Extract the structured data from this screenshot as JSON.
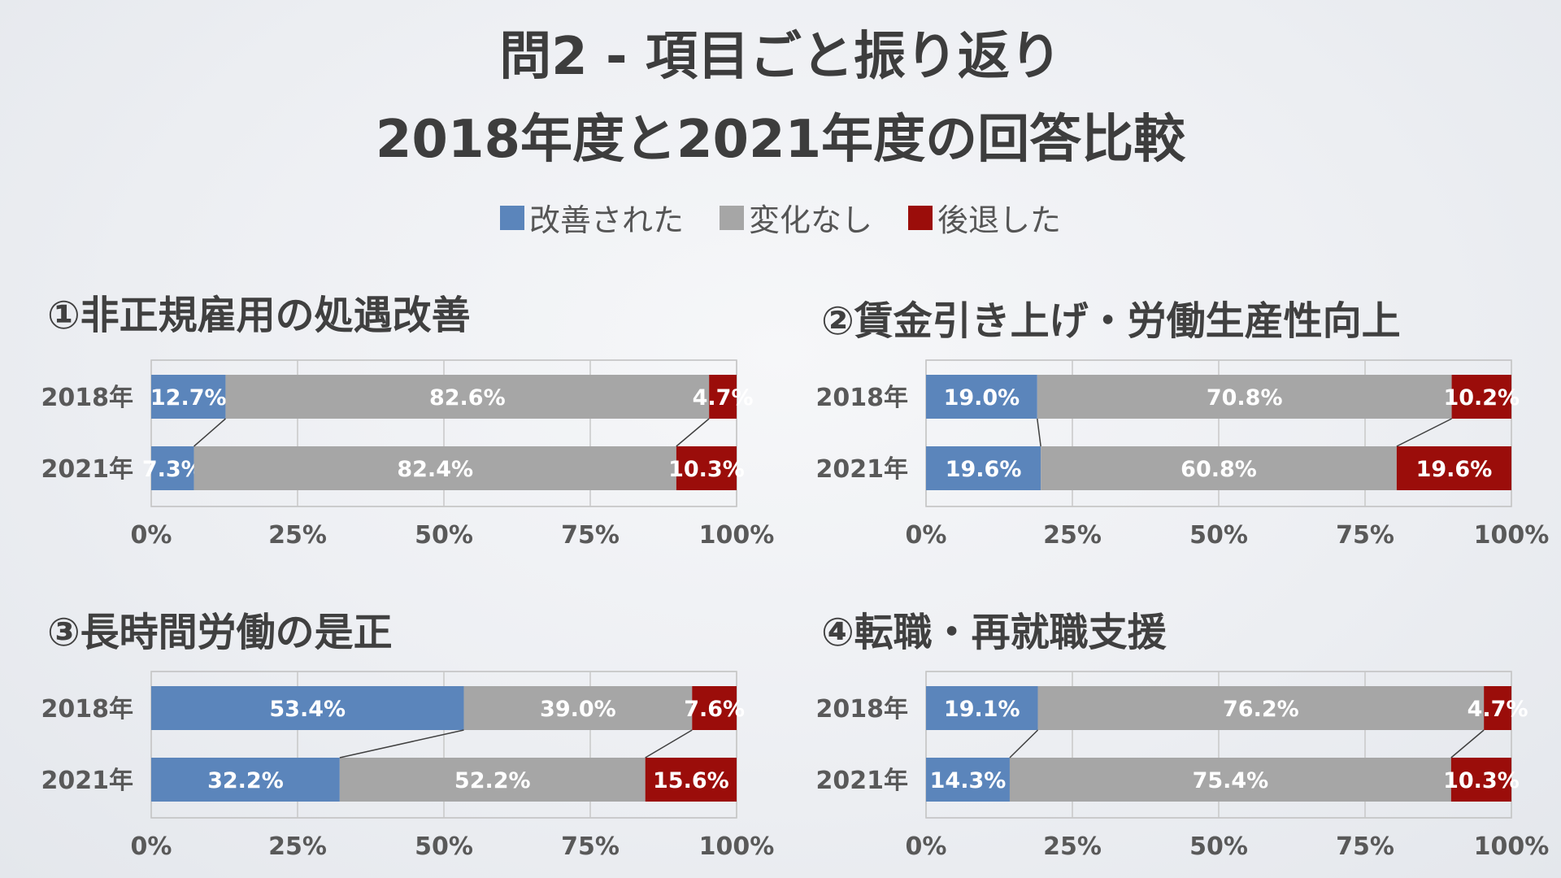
{
  "title_line1": "問2 - 項目ごと振り返り",
  "title_line2": "2018年度と2021年度の回答比較",
  "legend": [
    {
      "label": "改善された",
      "color": "#5b85bb"
    },
    {
      "label": "変化なし",
      "color": "#a6a6a6"
    },
    {
      "label": "後退した",
      "color": "#9b0d0a"
    }
  ],
  "chart_data": [
    {
      "type": "bar",
      "stacked": true,
      "orientation": "horizontal",
      "title": "①非正規雇用の処遇改善",
      "categories": [
        "2018年",
        "2021年"
      ],
      "series": [
        {
          "name": "改善された",
          "values": [
            12.7,
            7.3
          ]
        },
        {
          "name": "変化なし",
          "values": [
            82.6,
            82.4
          ]
        },
        {
          "name": "後退した",
          "values": [
            4.7,
            10.3
          ]
        }
      ],
      "xlim": [
        0,
        100
      ],
      "xticks": [
        "0%",
        "25%",
        "50%",
        "75%",
        "100%"
      ],
      "grid": true
    },
    {
      "type": "bar",
      "stacked": true,
      "orientation": "horizontal",
      "title": "②賃金引き上げ・労働生産性向上",
      "categories": [
        "2018年",
        "2021年"
      ],
      "series": [
        {
          "name": "改善された",
          "values": [
            19.0,
            19.6
          ]
        },
        {
          "name": "変化なし",
          "values": [
            70.8,
            60.8
          ]
        },
        {
          "name": "後退した",
          "values": [
            10.2,
            19.6
          ]
        }
      ],
      "xlim": [
        0,
        100
      ],
      "xticks": [
        "0%",
        "25%",
        "50%",
        "75%",
        "100%"
      ],
      "grid": true
    },
    {
      "type": "bar",
      "stacked": true,
      "orientation": "horizontal",
      "title": "③長時間労働の是正",
      "categories": [
        "2018年",
        "2021年"
      ],
      "series": [
        {
          "name": "改善された",
          "values": [
            53.4,
            32.2
          ]
        },
        {
          "name": "変化なし",
          "values": [
            39.0,
            52.2
          ]
        },
        {
          "name": "後退した",
          "values": [
            7.6,
            15.6
          ]
        }
      ],
      "xlim": [
        0,
        100
      ],
      "xticks": [
        "0%",
        "25%",
        "50%",
        "75%",
        "100%"
      ],
      "grid": true
    },
    {
      "type": "bar",
      "stacked": true,
      "orientation": "horizontal",
      "title": "④転職・再就職支援",
      "categories": [
        "2018年",
        "2021年"
      ],
      "series": [
        {
          "name": "改善された",
          "values": [
            19.1,
            14.3
          ]
        },
        {
          "name": "変化なし",
          "values": [
            76.2,
            75.4
          ]
        },
        {
          "name": "後退した",
          "values": [
            4.7,
            10.3
          ]
        }
      ],
      "xlim": [
        0,
        100
      ],
      "xticks": [
        "0%",
        "25%",
        "50%",
        "75%",
        "100%"
      ],
      "grid": true
    }
  ]
}
